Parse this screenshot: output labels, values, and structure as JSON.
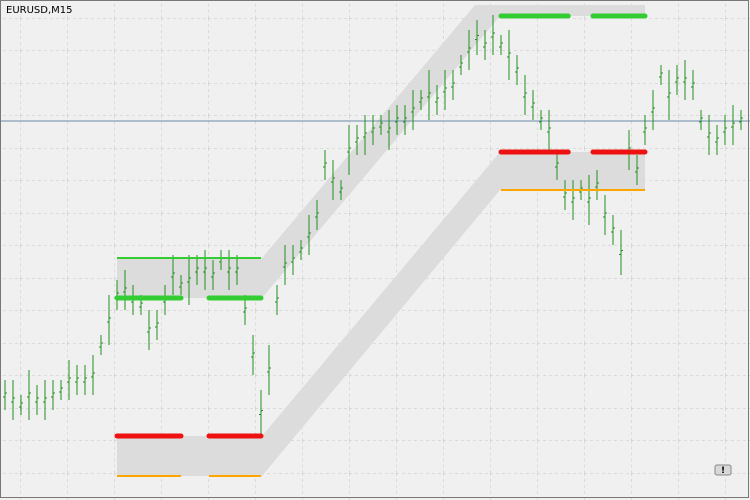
{
  "chart_data": {
    "type": "hilo",
    "title": "EURUSD,M15",
    "button": "!",
    "color": "#1f8f1f",
    "ylim": [
      0,
      100
    ],
    "high": [
      24,
      24,
      21,
      26,
      23,
      24,
      24,
      24,
      28,
      27,
      27,
      29,
      33,
      41,
      44,
      46,
      43,
      41,
      38,
      38,
      43,
      49,
      45,
      49,
      49,
      50,
      48,
      50,
      50,
      49,
      41,
      33,
      22,
      31,
      43,
      51,
      51,
      52,
      57,
      60,
      70,
      68,
      64,
      75,
      75,
      77,
      77,
      77,
      78,
      79,
      79,
      82,
      82,
      86,
      83,
      86,
      86,
      89,
      94,
      96,
      94,
      97,
      93,
      94,
      89,
      85,
      82,
      78,
      78,
      70,
      64,
      64,
      64,
      65,
      66,
      61,
      57,
      54,
      74,
      69,
      77,
      82,
      87,
      86,
      87,
      88,
      86,
      78,
      77,
      75,
      77,
      79,
      78
    ],
    "low": [
      18,
      16,
      17,
      16,
      17,
      16,
      18,
      20,
      20,
      21,
      21,
      21,
      29,
      31,
      38,
      38,
      37,
      37,
      30,
      32,
      37,
      41,
      41,
      39,
      43,
      42,
      42,
      46,
      42,
      43,
      35,
      25,
      13,
      21,
      37,
      43,
      45,
      48,
      49,
      54,
      64,
      60,
      60,
      65,
      69,
      69,
      71,
      73,
      70,
      73,
      73,
      74,
      78,
      76,
      77,
      78,
      80,
      85,
      86,
      89,
      88,
      89,
      89,
      84,
      83,
      77,
      76,
      74,
      70,
      64,
      58,
      56,
      60,
      55,
      60,
      53,
      51,
      45,
      66,
      63,
      71,
      74,
      83,
      76,
      81,
      80,
      80,
      74,
      69,
      69,
      71,
      71,
      74
    ],
    "price_line": {
      "value": 75.8,
      "color": "#6a8aa8"
    },
    "levels": [
      {
        "from": 14,
        "to": 32,
        "value": 48.4,
        "color": "#33cc33",
        "style": "thin"
      },
      {
        "from": 14,
        "to": 22,
        "value": 40.4,
        "color": "#33cc33",
        "style": "thick"
      },
      {
        "from": 25.5,
        "to": 32,
        "value": 40.4,
        "color": "#33cc33",
        "style": "thick"
      },
      {
        "from": 14,
        "to": 22,
        "value": 12.8,
        "color": "#ee1111",
        "style": "thick"
      },
      {
        "from": 25.5,
        "to": 32,
        "value": 12.8,
        "color": "#ee1111",
        "style": "thick"
      },
      {
        "from": 14,
        "to": 22,
        "value": 4.8,
        "color": "#ffa500",
        "style": "thin"
      },
      {
        "from": 25.5,
        "to": 32,
        "value": 4.8,
        "color": "#ffa500",
        "style": "thin"
      },
      {
        "from": 62,
        "to": 70.4,
        "value": 96.8,
        "color": "#33cc33",
        "style": "thick"
      },
      {
        "from": 73.5,
        "to": 80,
        "value": 96.8,
        "color": "#33cc33",
        "style": "thick"
      },
      {
        "from": 62,
        "to": 70.4,
        "value": 69.6,
        "color": "#ee1111",
        "style": "thick"
      },
      {
        "from": 73.5,
        "to": 80,
        "value": 69.6,
        "color": "#ee1111",
        "style": "thick"
      },
      {
        "from": 62,
        "to": 80,
        "value": 62,
        "color": "#ffa500",
        "style": "thin"
      }
    ]
  }
}
